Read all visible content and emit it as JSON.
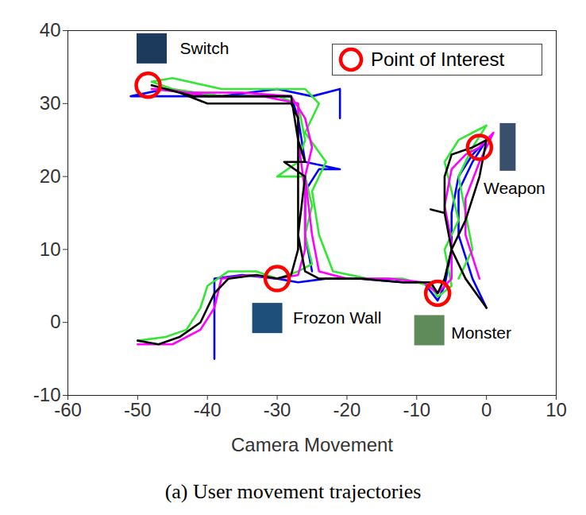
{
  "chart_data": {
    "type": "line",
    "xlabel": "Camera Movement",
    "caption": "(a) User movement trajectories",
    "xlim": [
      -60,
      10
    ],
    "xticks": [
      -60,
      -50,
      -40,
      -30,
      -20,
      -10,
      0,
      10
    ],
    "ylim": [
      -10,
      40
    ],
    "yticks": [
      -10,
      0,
      10,
      20,
      30,
      40
    ],
    "grid": false,
    "legend": "top-right",
    "series": [
      {
        "color": "#0000ff",
        "x": [
          -39,
          -39,
          -39,
          -35,
          -30,
          -27,
          -23,
          -18,
          -12,
          -9,
          -7,
          -6,
          -5,
          -5,
          -4,
          -2,
          -1,
          0,
          -2,
          -4,
          -4,
          -2,
          0,
          null,
          -25,
          -26,
          -26,
          -24,
          -21,
          -26,
          -27,
          -28,
          -35,
          -42,
          -48,
          -51,
          -46,
          -38,
          -30,
          -25,
          -21,
          -21
        ],
        "y": [
          -5,
          1,
          6,
          6.5,
          6,
          5.5,
          6,
          6,
          5.5,
          5.5,
          3,
          5,
          10,
          15,
          20,
          23,
          24,
          25,
          22,
          18,
          12,
          6,
          2,
          null,
          7,
          12,
          18,
          21,
          21,
          22,
          28,
          31,
          31,
          31,
          31,
          31,
          32,
          31,
          32,
          31,
          32,
          28
        ]
      },
      {
        "color": "#33e633",
        "x": [
          -50,
          -46,
          -43,
          -41,
          -40,
          -37,
          -33,
          -30,
          -27,
          -25,
          -26,
          -25,
          -26,
          -30,
          -27,
          -26,
          -27,
          -30,
          -38,
          -45,
          -48,
          -45,
          -38,
          -30,
          -26,
          -24,
          -26,
          -23,
          -25,
          -24,
          -22,
          -17,
          -12,
          -8,
          -7,
          -5,
          -6,
          -4,
          -5,
          -6,
          -4,
          -2,
          0,
          -2,
          -4,
          -3,
          -2,
          -4
        ],
        "y": [
          -2.5,
          -2,
          -1,
          2,
          5,
          7,
          7,
          6,
          7,
          8,
          12,
          16,
          20,
          20,
          22,
          25,
          30,
          31,
          31,
          32,
          33,
          33.5,
          32,
          32,
          32,
          30,
          26,
          22,
          18,
          12,
          7,
          6,
          6,
          5,
          3.5,
          5,
          10,
          14,
          18,
          22,
          25,
          26,
          27,
          24,
          20,
          15,
          10,
          6
        ]
      },
      {
        "color": "#ff00ff",
        "x": [
          -50,
          -45,
          -41,
          -39,
          -38,
          -34,
          -30,
          -27,
          -26,
          -26,
          -27,
          -27,
          -32,
          -40,
          -46,
          -48,
          -43,
          -35,
          -28,
          -26,
          -25,
          -26,
          -25,
          -24,
          -20,
          -14,
          -9,
          -7,
          -5,
          -5,
          -6,
          -5,
          -3,
          -1,
          1,
          -1,
          -3,
          -3,
          -1
        ],
        "y": [
          -3,
          -3,
          -1,
          2,
          6,
          6.5,
          6,
          6.5,
          10,
          18,
          25,
          30,
          31,
          31,
          32,
          32,
          31.5,
          31.5,
          31,
          28,
          24,
          20,
          12,
          7,
          6,
          6,
          5.5,
          4,
          6,
          11,
          16,
          21,
          23,
          24,
          26,
          22,
          17,
          12,
          6
        ]
      },
      {
        "color": "#000000",
        "x": [
          -50,
          -47,
          -44,
          -41,
          -39,
          -37,
          -33,
          -30,
          -28,
          -27,
          -27,
          -27,
          -28,
          -35,
          -40,
          -44,
          -48,
          -46,
          -42,
          -35,
          -28,
          -27,
          -26,
          -29,
          -26,
          -27,
          -26,
          -24,
          -18,
          -12,
          -8,
          -7,
          -6,
          -5,
          -6,
          -8,
          -6,
          -6,
          -5,
          -2,
          -1,
          0,
          -1,
          -3,
          -5,
          -3,
          0
        ],
        "y": [
          -2.5,
          -3,
          -2,
          0,
          4,
          6,
          6.5,
          6,
          6.5,
          10,
          20,
          28,
          30,
          30,
          30,
          31.5,
          32.5,
          32,
          31,
          31,
          31,
          25,
          22,
          22,
          20,
          12,
          7,
          6,
          6,
          5.5,
          5.5,
          4,
          6,
          10,
          15,
          15.5,
          15,
          20,
          23,
          24,
          24.5,
          25,
          20,
          14,
          10,
          6,
          2
        ]
      }
    ],
    "points_of_interest": {
      "name": "Point of Interest",
      "color": "#ff0000",
      "marker": "circle",
      "x": [
        -48.5,
        -1,
        -30,
        -7
      ],
      "y": [
        32.5,
        24,
        6,
        4
      ],
      "labels": [
        "Switch",
        "Weapon",
        "Frozon Wall",
        "Monster"
      ]
    }
  }
}
